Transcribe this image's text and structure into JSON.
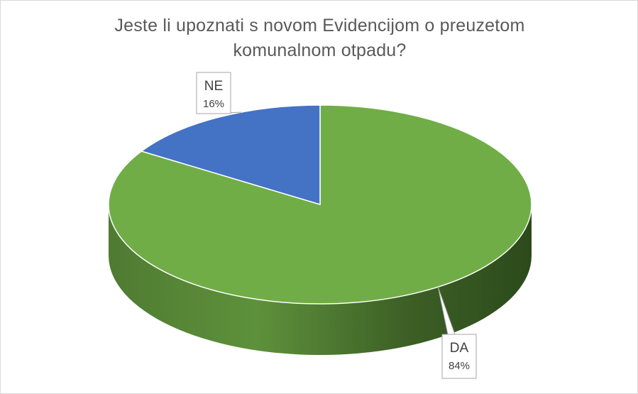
{
  "chart_data": {
    "type": "pie",
    "title_lines": [
      "Jeste li upoznati s novom Evidencijom o preuzetom",
      "komunalnom otpadu?"
    ],
    "categories": [
      "DA",
      "NE"
    ],
    "values": [
      84,
      16
    ],
    "labels": [
      "84%",
      "16%"
    ],
    "colors": [
      "#70ad47",
      "#4472c4"
    ],
    "three_d": true,
    "legend": "none"
  }
}
